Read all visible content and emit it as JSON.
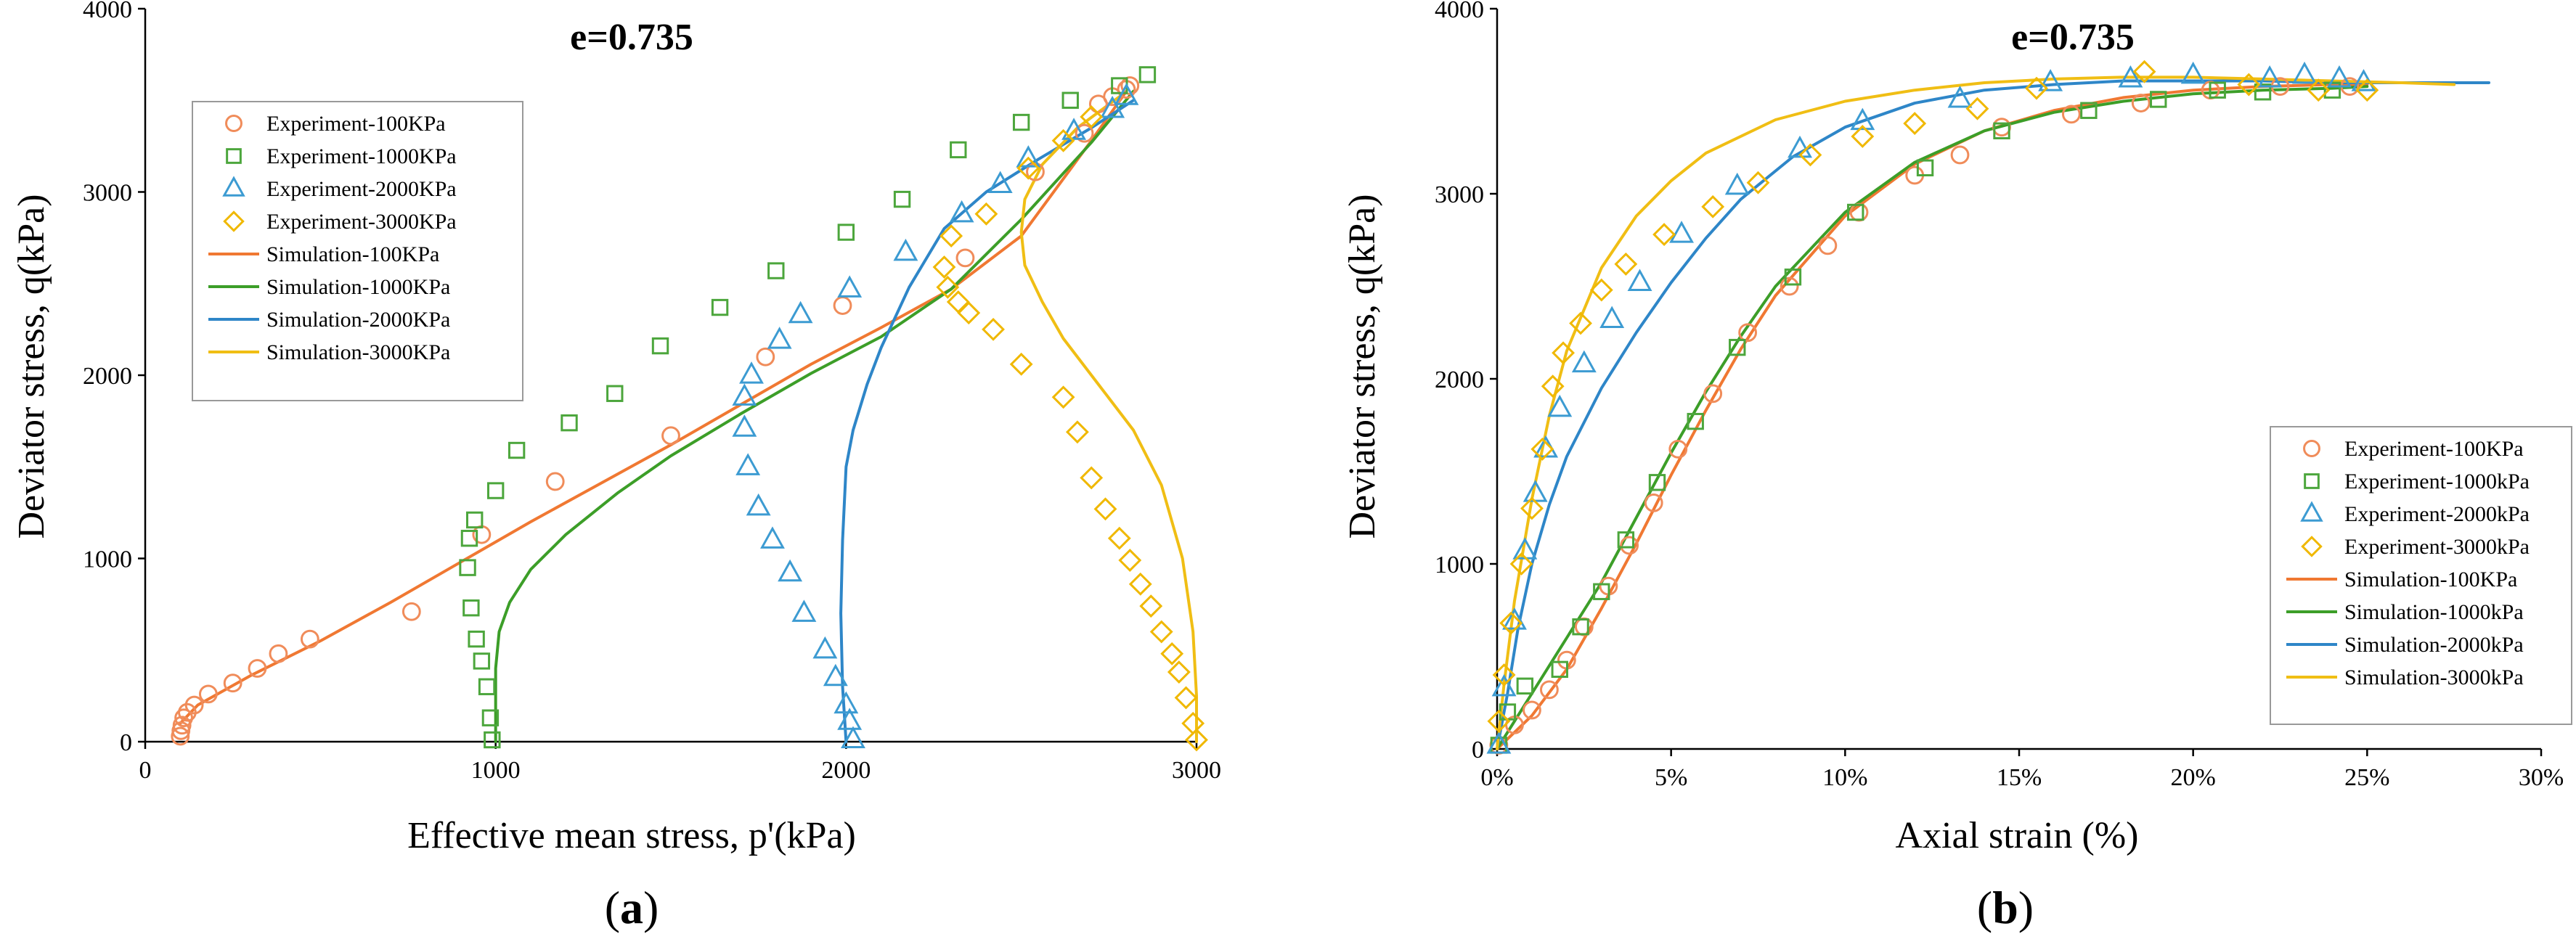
{
  "chart_data": [
    {
      "type": "scatter",
      "panel": "(a)",
      "title": "e=0.735",
      "xlabel": "Effective mean stress,  p'(kPa)",
      "ylabel": "Deviator stress,  q(kPa)",
      "xlim": [
        0,
        3000
      ],
      "ylim": [
        0,
        4000
      ],
      "xticks": [
        0,
        1000,
        2000,
        3000
      ],
      "yticks": [
        0,
        1000,
        2000,
        3000,
        4000
      ],
      "xtick_labels": [
        "0",
        "1000",
        "2000",
        "3000"
      ],
      "ytick_labels": [
        "0",
        "1000",
        "2000",
        "3000",
        "4000"
      ],
      "grid": false,
      "legend_position": "upper-left",
      "series": [
        {
          "name": "Experiment-100KPa",
          "kind": "marker",
          "marker": "circle",
          "color": "#F08C5A",
          "x": [
            100,
            102,
            105,
            110,
            120,
            140,
            180,
            250,
            320,
            380,
            470,
            760,
            960,
            1170,
            1500,
            1770,
            1990,
            2340,
            2540,
            2680,
            2720,
            2760,
            2800,
            2810
          ],
          "y": [
            30,
            60,
            90,
            130,
            160,
            200,
            260,
            320,
            400,
            480,
            560,
            710,
            1130,
            1420,
            1670,
            2100,
            2380,
            2640,
            3110,
            3320,
            3480,
            3520,
            3560,
            3580
          ]
        },
        {
          "name": "Experiment-1000KPa",
          "kind": "marker",
          "marker": "square",
          "color": "#4CA63C",
          "x": [
            990,
            985,
            975,
            960,
            945,
            930,
            920,
            925,
            940,
            1000,
            1060,
            1210,
            1340,
            1470,
            1640,
            1800,
            2000,
            2160,
            2320,
            2500,
            2640,
            2780,
            2860
          ],
          "y": [
            10,
            130,
            300,
            440,
            560,
            730,
            950,
            1110,
            1210,
            1370,
            1590,
            1740,
            1900,
            2160,
            2370,
            2570,
            2780,
            2960,
            3230,
            3380,
            3500,
            3580,
            3640
          ]
        },
        {
          "name": "Experiment-2000KPa",
          "kind": "marker",
          "marker": "triangle",
          "color": "#3C9BD2",
          "x": [
            2020,
            2010,
            2000,
            1970,
            1940,
            1880,
            1840,
            1790,
            1750,
            1720,
            1710,
            1710,
            1730,
            1810,
            1870,
            2010,
            2170,
            2330,
            2440,
            2520,
            2650,
            2760,
            2800
          ],
          "y": [
            10,
            110,
            200,
            350,
            500,
            700,
            920,
            1100,
            1280,
            1500,
            1710,
            1880,
            2000,
            2190,
            2330,
            2470,
            2670,
            2880,
            3040,
            3180,
            3330,
            3450,
            3520
          ]
        },
        {
          "name": "Experiment-3000KPa",
          "kind": "marker",
          "marker": "diamond",
          "color": "#F0B800",
          "x": [
            3000,
            2990,
            2970,
            2950,
            2930,
            2900,
            2870,
            2840,
            2810,
            2780,
            2740,
            2700,
            2660,
            2620,
            2500,
            2420,
            2350,
            2320,
            2290,
            2280,
            2300,
            2400,
            2520,
            2620,
            2700
          ],
          "y": [
            10,
            100,
            240,
            380,
            480,
            600,
            740,
            860,
            990,
            1110,
            1270,
            1440,
            1690,
            1880,
            2060,
            2250,
            2340,
            2400,
            2480,
            2590,
            2760,
            2880,
            3130,
            3280,
            3410
          ]
        },
        {
          "name": "Simulation-100KPa",
          "kind": "line",
          "color": "#F07832",
          "x": [
            100,
            150,
            300,
            500,
            700,
            900,
            1100,
            1300,
            1500,
            1700,
            1900,
            2100,
            2300,
            2500,
            2700,
            2800
          ],
          "y": [
            100,
            200,
            360,
            550,
            760,
            980,
            1200,
            1410,
            1620,
            1840,
            2060,
            2260,
            2470,
            2760,
            3280,
            3550
          ]
        },
        {
          "name": "Simulation-1000KPa",
          "kind": "line",
          "color": "#3C9E28",
          "x": [
            1000,
            1000,
            1010,
            1040,
            1100,
            1200,
            1350,
            1500,
            1700,
            1900,
            2100,
            2300,
            2500,
            2700,
            2820
          ],
          "y": [
            0,
            400,
            600,
            760,
            940,
            1130,
            1360,
            1560,
            1790,
            2010,
            2210,
            2470,
            2850,
            3270,
            3550
          ]
        },
        {
          "name": "Simulation-2000KPa",
          "kind": "line",
          "color": "#2E86C8",
          "x": [
            2000,
            1990,
            1985,
            1990,
            2000,
            2020,
            2060,
            2100,
            2180,
            2280,
            2400,
            2550,
            2700,
            2820
          ],
          "y": [
            0,
            300,
            700,
            1100,
            1500,
            1700,
            1950,
            2150,
            2480,
            2800,
            3000,
            3180,
            3350,
            3500
          ]
        },
        {
          "name": "Simulation-3000KPa",
          "kind": "line",
          "color": "#F0BE14",
          "x": [
            3000,
            3000,
            2990,
            2960,
            2900,
            2820,
            2720,
            2620,
            2560,
            2510,
            2500,
            2510,
            2560,
            2660,
            2780
          ],
          "y": [
            0,
            250,
            600,
            1000,
            1400,
            1700,
            1950,
            2200,
            2400,
            2600,
            2780,
            2960,
            3150,
            3350,
            3520
          ]
        }
      ]
    },
    {
      "type": "scatter",
      "panel": "(b)",
      "title": "e=0.735",
      "xlabel": "Axial strain  (%)",
      "ylabel": "Deviator stress,  q(kPa)",
      "xlim": [
        0,
        30
      ],
      "ylim": [
        0,
        4000
      ],
      "xticks": [
        0,
        5,
        10,
        15,
        20,
        25,
        30
      ],
      "yticks": [
        0,
        1000,
        2000,
        3000,
        4000
      ],
      "xtick_labels": [
        "0%",
        "5%",
        "10%",
        "15%",
        "20%",
        "25%",
        "30%"
      ],
      "ytick_labels": [
        "0",
        "1000",
        "2000",
        "3000",
        "4000"
      ],
      "grid": false,
      "legend_position": "lower-right",
      "series": [
        {
          "name": "Experiment-100KPa",
          "kind": "marker",
          "marker": "circle",
          "color": "#F08C5A",
          "x": [
            0.05,
            0.5,
            1.0,
            1.5,
            2.0,
            2.5,
            3.2,
            3.8,
            4.5,
            5.2,
            6.2,
            7.2,
            8.4,
            9.5,
            10.4,
            12.0,
            13.3,
            14.5,
            16.5,
            18.5,
            20.5,
            22.5,
            24.5
          ],
          "y": [
            20,
            130,
            210,
            320,
            480,
            660,
            880,
            1100,
            1330,
            1620,
            1920,
            2250,
            2500,
            2720,
            2900,
            3100,
            3210,
            3360,
            3430,
            3490,
            3560,
            3580,
            3580
          ]
        },
        {
          "name": "Experiment-1000kPa",
          "kind": "marker",
          "marker": "square",
          "color": "#4CA63C",
          "x": [
            0.05,
            0.3,
            0.8,
            1.8,
            2.4,
            3.0,
            3.7,
            4.6,
            5.7,
            6.9,
            8.5,
            10.3,
            12.3,
            14.5,
            17.0,
            19.0,
            20.7,
            22.0,
            24.0
          ],
          "y": [
            20,
            200,
            340,
            430,
            660,
            850,
            1130,
            1440,
            1770,
            2170,
            2550,
            2900,
            3140,
            3340,
            3450,
            3510,
            3560,
            3550,
            3560
          ]
        },
        {
          "name": "Experiment-2000kPa",
          "kind": "marker",
          "marker": "triangle",
          "color": "#3C9BD2",
          "x": [
            0.05,
            0.2,
            0.5,
            0.8,
            1.1,
            1.4,
            1.8,
            2.5,
            3.3,
            4.1,
            5.3,
            6.9,
            8.7,
            10.5,
            13.3,
            15.9,
            18.2,
            20.0,
            22.2,
            23.2,
            24.2,
            24.9
          ],
          "y": [
            20,
            330,
            690,
            1070,
            1380,
            1620,
            1840,
            2080,
            2320,
            2520,
            2780,
            3040,
            3240,
            3390,
            3510,
            3600,
            3620,
            3640,
            3620,
            3640,
            3620,
            3600
          ]
        },
        {
          "name": "Experiment-3000kPa",
          "kind": "marker",
          "marker": "diamond",
          "color": "#F0B800",
          "x": [
            0.05,
            0.2,
            0.4,
            0.7,
            1.0,
            1.3,
            1.6,
            1.9,
            2.4,
            3.0,
            3.7,
            4.8,
            6.2,
            7.5,
            9.0,
            10.5,
            12.0,
            13.8,
            15.5,
            18.6,
            21.6,
            23.6,
            25.0
          ],
          "y": [
            150,
            400,
            680,
            1000,
            1300,
            1620,
            1960,
            2140,
            2300,
            2480,
            2620,
            2780,
            2930,
            3060,
            3210,
            3310,
            3380,
            3460,
            3570,
            3660,
            3590,
            3560,
            3560
          ]
        },
        {
          "name": "Simulation-100KPa",
          "kind": "line",
          "color": "#F07832",
          "x": [
            0,
            1,
            2,
            3,
            4,
            5,
            6,
            7,
            8,
            10,
            12,
            14,
            16,
            18,
            20,
            22,
            24,
            25
          ],
          "y": [
            0,
            180,
            430,
            760,
            1110,
            1480,
            1830,
            2160,
            2450,
            2880,
            3160,
            3340,
            3450,
            3520,
            3560,
            3580,
            3590,
            3590
          ]
        },
        {
          "name": "Simulation-1000kPa",
          "kind": "line",
          "color": "#3C9E28",
          "x": [
            0,
            1,
            2,
            3,
            4,
            5,
            6,
            7,
            8,
            10,
            12,
            14,
            16,
            18,
            20,
            22,
            24,
            25
          ],
          "y": [
            0,
            300,
            600,
            900,
            1250,
            1600,
            1930,
            2230,
            2500,
            2900,
            3170,
            3340,
            3440,
            3500,
            3540,
            3560,
            3570,
            3580
          ]
        },
        {
          "name": "Simulation-2000kPa",
          "kind": "line",
          "color": "#2E86C8",
          "x": [
            0,
            0.3,
            0.6,
            1.0,
            1.5,
            2.0,
            3.0,
            4.0,
            5.0,
            6.0,
            7.0,
            8.5,
            10.0,
            12.0,
            14.0,
            16.0,
            18.0,
            20.0,
            22.0,
            24.0,
            26.0,
            28.5
          ],
          "y": [
            0,
            300,
            650,
            1000,
            1320,
            1580,
            1950,
            2250,
            2520,
            2760,
            2970,
            3200,
            3360,
            3490,
            3560,
            3590,
            3610,
            3610,
            3610,
            3600,
            3600,
            3600
          ]
        },
        {
          "name": "Simulation-3000kPa",
          "kind": "line",
          "color": "#F0BE14",
          "x": [
            0,
            0.2,
            0.5,
            1.0,
            1.5,
            2.0,
            3.0,
            4.0,
            5.0,
            6.0,
            8.0,
            10.0,
            12.0,
            14.0,
            16.0,
            18.0,
            20.0,
            22.0,
            24.0,
            26.0,
            27.5
          ],
          "y": [
            0,
            350,
            800,
            1350,
            1800,
            2150,
            2600,
            2880,
            3070,
            3220,
            3400,
            3500,
            3560,
            3600,
            3620,
            3630,
            3630,
            3620,
            3610,
            3600,
            3590
          ]
        }
      ]
    }
  ]
}
